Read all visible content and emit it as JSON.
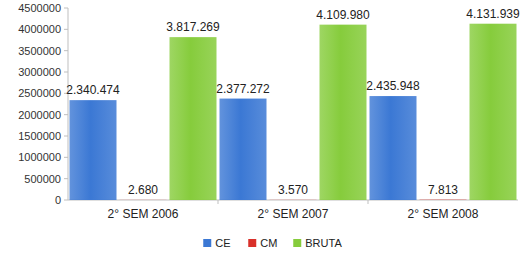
{
  "chart_data": {
    "type": "bar",
    "categories": [
      "2° SEM 2006",
      "2° SEM 2007",
      "2° SEM 2008"
    ],
    "series": [
      {
        "name": "CE",
        "color": "#3b78d4",
        "values": [
          2340474,
          2377272,
          2435948
        ],
        "value_labels": [
          "2.340.474",
          "2.377.272",
          "2.435.948"
        ]
      },
      {
        "name": "CM",
        "color": "#d9302a",
        "values": [
          2680,
          3570,
          7813
        ],
        "value_labels": [
          "2.680",
          "3.570",
          "7.813"
        ]
      },
      {
        "name": "BRUTA",
        "color": "#86cc3c",
        "values": [
          3817269,
          4109980,
          4131939
        ],
        "value_labels": [
          "3.817.269",
          "4.109.980",
          "4.131.939"
        ]
      }
    ],
    "ylim": [
      0,
      4500000
    ],
    "yticks": [
      0,
      500000,
      1000000,
      1500000,
      2000000,
      2500000,
      3000000,
      3500000,
      4000000,
      4500000
    ],
    "grid": false,
    "legend": "bottom",
    "data_labels": true
  }
}
